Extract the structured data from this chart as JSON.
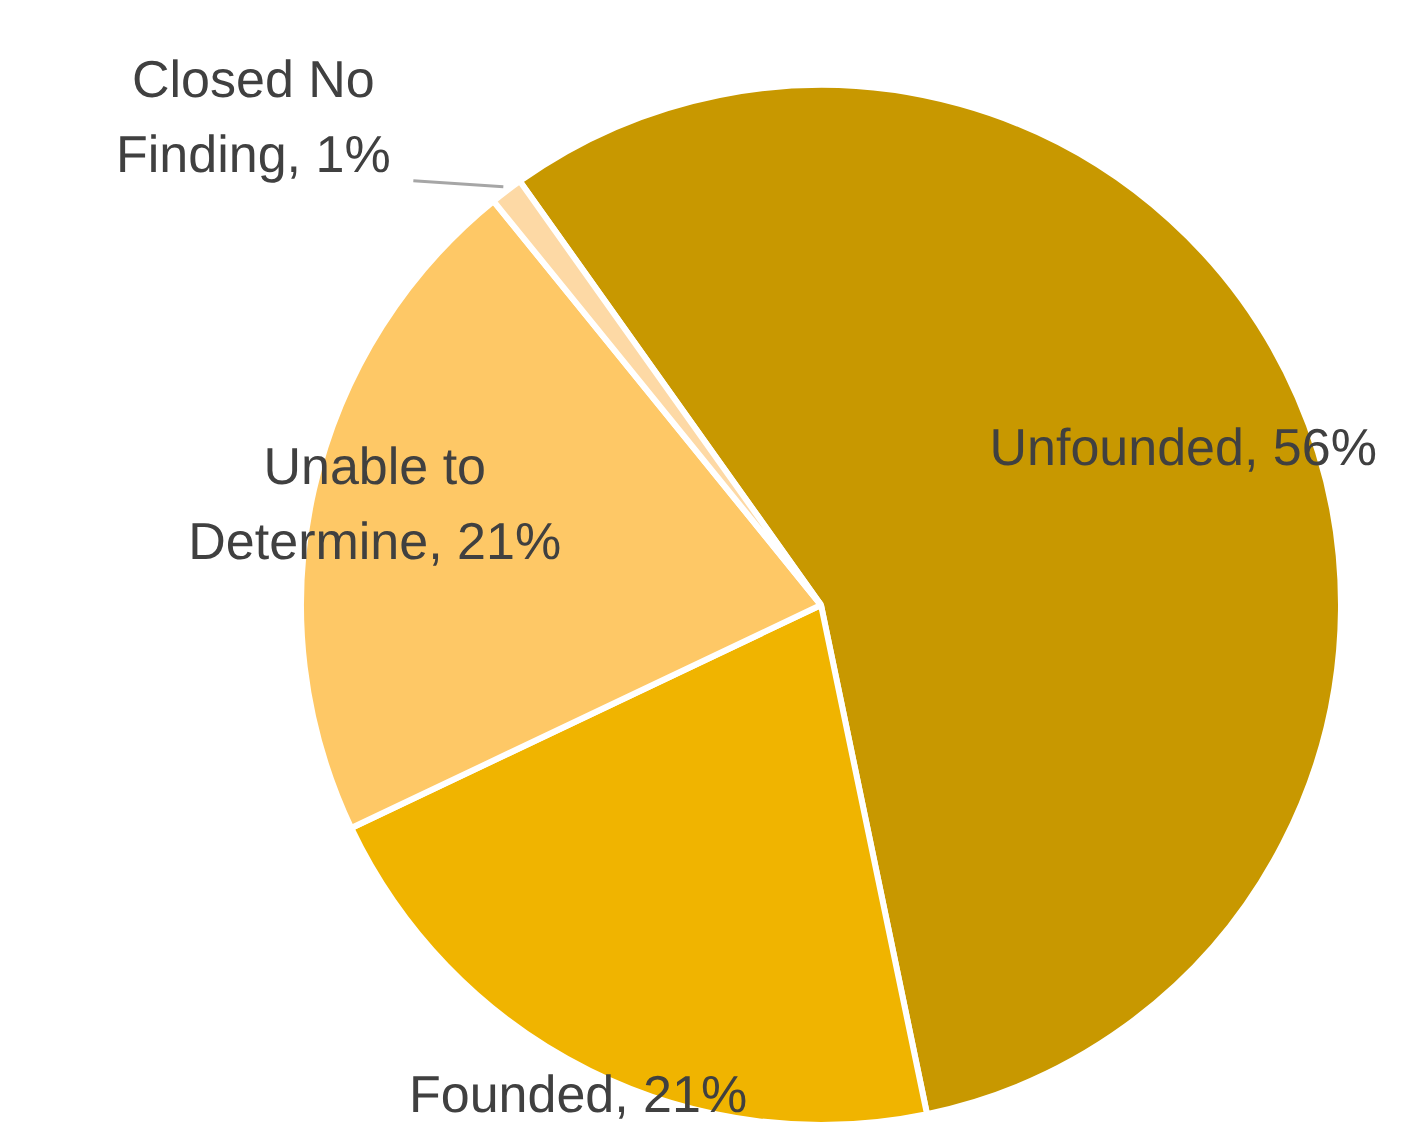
{
  "chart_data": {
    "type": "pie",
    "categories": [
      "Unfounded",
      "Founded",
      "Unable to Determine",
      "Closed No Finding"
    ],
    "values": [
      56,
      21,
      21,
      1
    ],
    "colors": [
      "#c89800",
      "#f0b400",
      "#fec866",
      "#fdd9a5"
    ],
    "value_labels": [
      "56%",
      "21%",
      "21%",
      "1%"
    ]
  }
}
